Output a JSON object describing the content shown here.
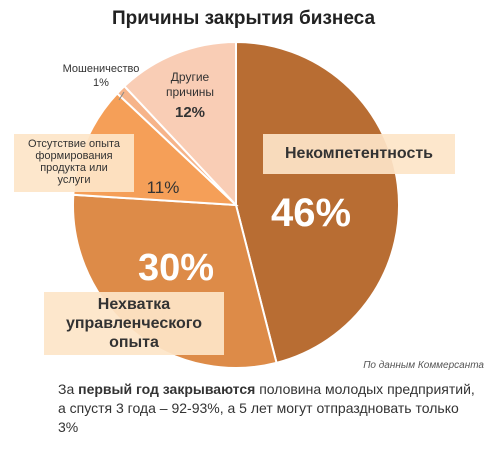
{
  "chart_data": {
    "type": "pie",
    "title": "Причины закрытия бизнеса",
    "slices": [
      {
        "name": "Некомпетентность",
        "value": 46,
        "label": "46%",
        "color": "#b86d33"
      },
      {
        "name": "Нехватка управленческого опыта",
        "value": 30,
        "label": "30%",
        "color": "#dd8b48"
      },
      {
        "name": "Отсутствие опыта формирования продукта или услуги",
        "value": 11,
        "label": "11%",
        "color": "#f59f58"
      },
      {
        "name": "Мошеничество",
        "value": 1,
        "label": "1%",
        "color": "#f6b48a"
      },
      {
        "name": "Другие причины",
        "value": 12,
        "label": "12%",
        "color": "#f9cdb5"
      }
    ]
  },
  "labels": {
    "incompetence": "Некомпетентность",
    "management_line1": "Нехватка",
    "management_line2": "управленческого",
    "management_line3": "опыта",
    "product_line1": "Отсутствие опыта",
    "product_line2": "формирования",
    "product_line3": "продукта или",
    "product_line4": "услуги",
    "fraud": "Мошеничество",
    "other_line1": "Другие",
    "other_line2": "причины"
  },
  "source": "По данным Коммерсанта",
  "caption": {
    "part1": "За ",
    "bold": "первый год закрываются",
    "part2": " половина молодых предприятий, а спустя 3 года – 92-93%, а 5 лет могут отпраздновать только 3%"
  }
}
